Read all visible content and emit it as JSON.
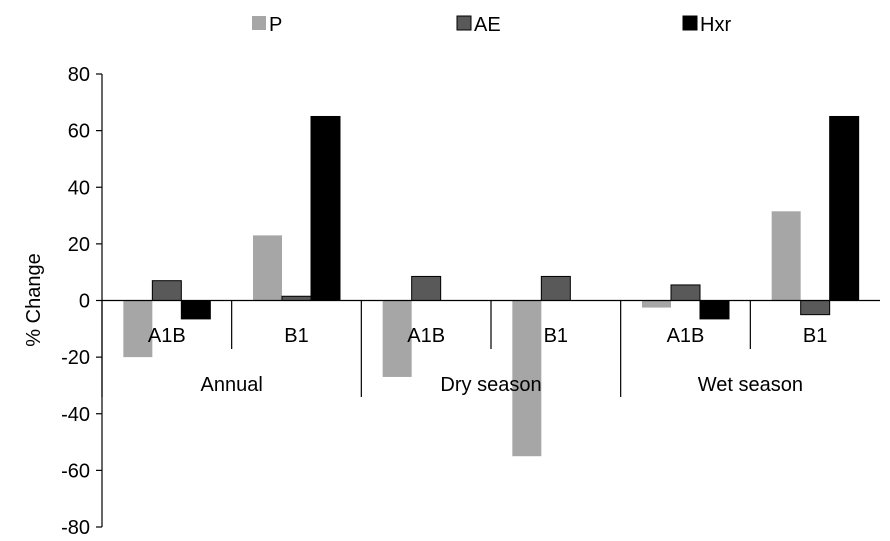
{
  "chart_data": {
    "type": "bar",
    "title": "",
    "xlabel": "",
    "ylabel": "% Change",
    "ylim": [
      -80,
      80
    ],
    "yticks": [
      80,
      60,
      40,
      20,
      0,
      -20,
      -40,
      -60,
      -80
    ],
    "legend_position": "top",
    "grid": false,
    "groups": [
      "Annual",
      "Dry season",
      "Wet season"
    ],
    "categories": [
      "A1B",
      "B1",
      "A1B",
      "B1",
      "A1B",
      "B1"
    ],
    "series": [
      {
        "name": "P",
        "color": "#a6a6a6",
        "values": [
          -20,
          23,
          -27,
          -55,
          -2.5,
          31.5
        ]
      },
      {
        "name": "AE",
        "color": "#595959",
        "values": [
          7,
          1.5,
          8.5,
          8.5,
          5.5,
          -5
        ]
      },
      {
        "name": "Hxr",
        "color": "#000000",
        "values": [
          -6.5,
          65,
          0,
          0,
          -6.5,
          65
        ]
      }
    ]
  }
}
